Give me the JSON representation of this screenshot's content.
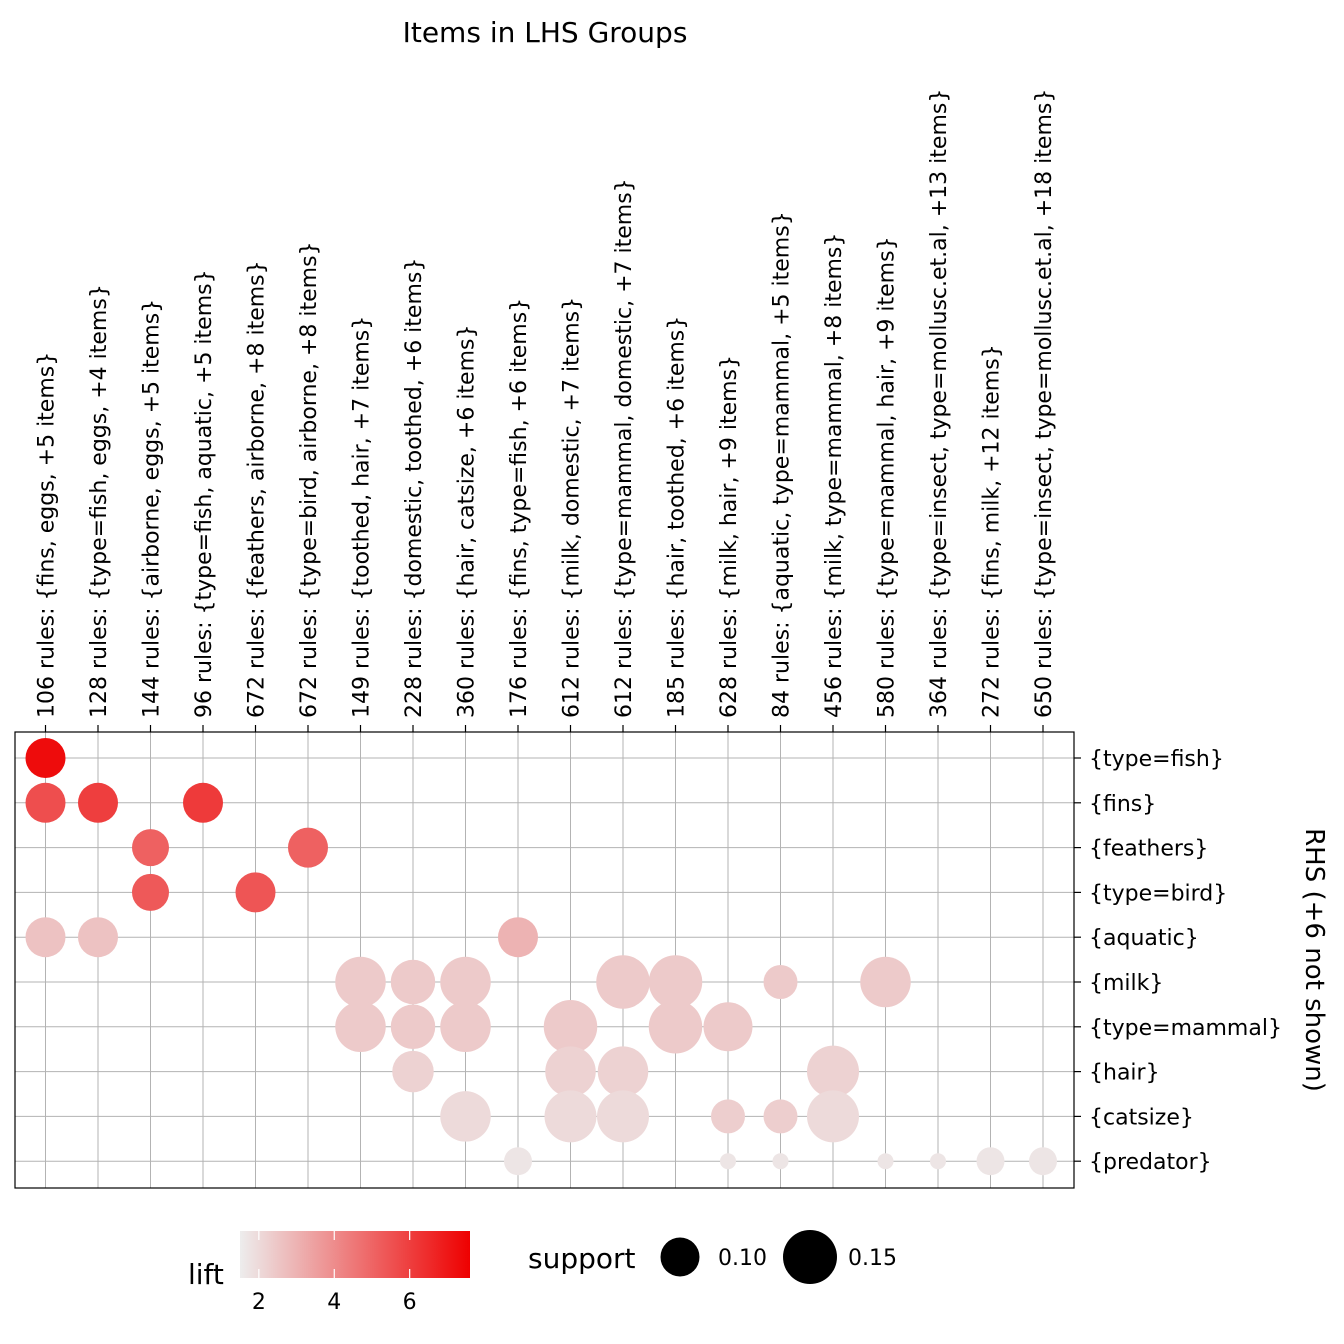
{
  "chart_data": {
    "type": "scatter",
    "title": "Items in LHS Groups",
    "ylabel": "RHS (+6 not shown)",
    "columns": [
      "106 rules: {fins, eggs, +5 items}",
      "128 rules: {type=fish, eggs, +4 items}",
      "144 rules: {airborne, eggs, +5 items}",
      "96 rules: {type=fish, aquatic, +5 items}",
      "672 rules: {feathers, airborne, +8 items}",
      "672 rules: {type=bird, airborne, +8 items}",
      "149 rules: {toothed, hair, +7 items}",
      "228 rules: {domestic, toothed, +6 items}",
      "360 rules: {hair, catsize, +6 items}",
      "176 rules: {fins, type=fish, +6 items}",
      "612 rules: {milk, domestic, +7 items}",
      "612 rules: {type=mammal, domestic, +7 items}",
      "185 rules: {hair, toothed, +6 items}",
      "628 rules: {milk, hair, +9 items}",
      "84 rules: {aquatic, type=mammal, +5 items}",
      "456 rules: {milk, type=mammal, +8 items}",
      "580 rules: {type=mammal, hair, +9 items}",
      "364 rules: {type=insect, type=mollusc.et.al, +13 items}",
      "272 rules: {fins, milk, +12 items}",
      "650 rules: {type=insect, type=mollusc.et.al, +18 items}"
    ],
    "rows": [
      "{type=fish}",
      "{fins}",
      "{feathers}",
      "{type=bird}",
      "{aquatic}",
      "{milk}",
      "{type=mammal}",
      "{hair}",
      "{catsize}",
      "{predator}"
    ],
    "points": [
      {
        "col": 0,
        "row": 0,
        "support": 0.13,
        "lift": 7.3
      },
      {
        "col": 0,
        "row": 1,
        "support": 0.13,
        "lift": 5.6
      },
      {
        "col": 1,
        "row": 1,
        "support": 0.13,
        "lift": 6.0
      },
      {
        "col": 3,
        "row": 1,
        "support": 0.13,
        "lift": 6.1
      },
      {
        "col": 2,
        "row": 2,
        "support": 0.12,
        "lift": 5.1
      },
      {
        "col": 5,
        "row": 2,
        "support": 0.13,
        "lift": 5.1
      },
      {
        "col": 2,
        "row": 3,
        "support": 0.12,
        "lift": 5.3
      },
      {
        "col": 4,
        "row": 3,
        "support": 0.13,
        "lift": 5.4
      },
      {
        "col": 0,
        "row": 4,
        "support": 0.13,
        "lift": 2.6
      },
      {
        "col": 1,
        "row": 4,
        "support": 0.13,
        "lift": 2.6
      },
      {
        "col": 9,
        "row": 4,
        "support": 0.13,
        "lift": 3.0
      },
      {
        "col": 6,
        "row": 5,
        "support": 0.165,
        "lift": 2.4
      },
      {
        "col": 7,
        "row": 5,
        "support": 0.145,
        "lift": 2.4
      },
      {
        "col": 8,
        "row": 5,
        "support": 0.165,
        "lift": 2.4
      },
      {
        "col": 11,
        "row": 5,
        "support": 0.175,
        "lift": 2.4
      },
      {
        "col": 12,
        "row": 5,
        "support": 0.175,
        "lift": 2.4
      },
      {
        "col": 14,
        "row": 5,
        "support": 0.11,
        "lift": 2.4
      },
      {
        "col": 16,
        "row": 5,
        "support": 0.165,
        "lift": 2.4
      },
      {
        "col": 6,
        "row": 6,
        "support": 0.165,
        "lift": 2.4
      },
      {
        "col": 7,
        "row": 6,
        "support": 0.145,
        "lift": 2.4
      },
      {
        "col": 8,
        "row": 6,
        "support": 0.165,
        "lift": 2.4
      },
      {
        "col": 10,
        "row": 6,
        "support": 0.175,
        "lift": 2.4
      },
      {
        "col": 12,
        "row": 6,
        "support": 0.175,
        "lift": 2.4
      },
      {
        "col": 13,
        "row": 6,
        "support": 0.16,
        "lift": 2.4
      },
      {
        "col": 7,
        "row": 7,
        "support": 0.135,
        "lift": 2.2
      },
      {
        "col": 10,
        "row": 7,
        "support": 0.165,
        "lift": 2.2
      },
      {
        "col": 11,
        "row": 7,
        "support": 0.165,
        "lift": 2.2
      },
      {
        "col": 15,
        "row": 7,
        "support": 0.17,
        "lift": 2.2
      },
      {
        "col": 8,
        "row": 8,
        "support": 0.165,
        "lift": 2.0
      },
      {
        "col": 10,
        "row": 8,
        "support": 0.17,
        "lift": 2.0
      },
      {
        "col": 11,
        "row": 8,
        "support": 0.17,
        "lift": 2.0
      },
      {
        "col": 13,
        "row": 8,
        "support": 0.11,
        "lift": 2.3
      },
      {
        "col": 14,
        "row": 8,
        "support": 0.11,
        "lift": 2.3
      },
      {
        "col": 15,
        "row": 8,
        "support": 0.17,
        "lift": 2.0
      },
      {
        "col": 9,
        "row": 9,
        "support": 0.09,
        "lift": 1.7
      },
      {
        "col": 13,
        "row": 9,
        "support": 0.05,
        "lift": 1.7
      },
      {
        "col": 14,
        "row": 9,
        "support": 0.05,
        "lift": 1.7
      },
      {
        "col": 16,
        "row": 9,
        "support": 0.05,
        "lift": 1.7
      },
      {
        "col": 17,
        "row": 9,
        "support": 0.05,
        "lift": 1.7
      },
      {
        "col": 18,
        "row": 9,
        "support": 0.09,
        "lift": 1.7
      },
      {
        "col": 19,
        "row": 9,
        "support": 0.09,
        "lift": 1.7
      }
    ],
    "legend": {
      "lift_title": "lift",
      "lift_ticks": [
        "2",
        "4",
        "6"
      ],
      "lift_tick_values": [
        2,
        4,
        6
      ],
      "lift_range": [
        1.5,
        7.6
      ],
      "color_low": "#ededed",
      "color_high": "#ee0000",
      "support_title": "support",
      "support_ticks": [
        "0.10",
        "0.15"
      ],
      "support_tick_values": [
        0.1,
        0.15
      ],
      "support_color": "#000000"
    }
  }
}
